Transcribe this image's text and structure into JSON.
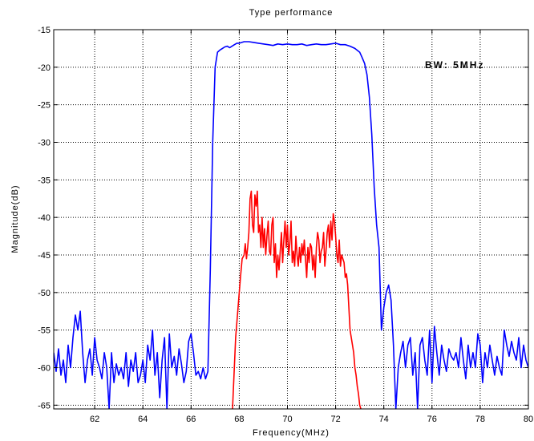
{
  "chart_data": {
    "type": "line",
    "title": "Type performance",
    "xlabel": "Frequency(MHz)",
    "ylabel": "Magnitude(dB)",
    "annotation": "BW: 5MHz",
    "xlim": [
      60.3,
      80
    ],
    "ylim": [
      -65.5,
      -15
    ],
    "xticks": [
      62,
      64,
      66,
      68,
      70,
      72,
      74,
      76,
      78,
      80
    ],
    "yticks": [
      -15,
      -20,
      -25,
      -30,
      -35,
      -40,
      -45,
      -50,
      -55,
      -60,
      -65
    ],
    "grid": true,
    "grid_style": "dotted",
    "series": [
      {
        "color": "#0000ff",
        "x": [
          60.3,
          60.4,
          60.5,
          60.6,
          60.7,
          60.8,
          60.9,
          61.0,
          61.1,
          61.2,
          61.3,
          61.4,
          61.5,
          61.6,
          61.7,
          61.8,
          61.9,
          62.0,
          62.1,
          62.2,
          62.3,
          62.4,
          62.5,
          62.6,
          62.7,
          62.8,
          62.9,
          63.0,
          63.1,
          63.2,
          63.3,
          63.4,
          63.5,
          63.6,
          63.7,
          63.8,
          63.9,
          64.0,
          64.1,
          64.2,
          64.3,
          64.4,
          64.5,
          64.6,
          64.7,
          64.8,
          64.9,
          65.0,
          65.1,
          65.2,
          65.3,
          65.4,
          65.5,
          65.6,
          65.7,
          65.8,
          65.9,
          66.0,
          66.1,
          66.2,
          66.3,
          66.4,
          66.5,
          66.6,
          66.7,
          66.8,
          66.9,
          67.0,
          67.1,
          67.2,
          67.3,
          67.4,
          67.5,
          67.6,
          67.7,
          67.8,
          67.9,
          68.0,
          68.2,
          68.4,
          68.6,
          68.8,
          69.0,
          69.2,
          69.4,
          69.6,
          69.8,
          70.0,
          70.2,
          70.4,
          70.6,
          70.8,
          71.0,
          71.2,
          71.4,
          71.6,
          71.8,
          72.0,
          72.2,
          72.4,
          72.6,
          72.8,
          73.0,
          73.1,
          73.2,
          73.3,
          73.4,
          73.5,
          73.6,
          73.7,
          73.8,
          73.9,
          74.0,
          74.1,
          74.2,
          74.3,
          74.4,
          74.5,
          74.6,
          74.7,
          74.8,
          74.9,
          75.0,
          75.1,
          75.2,
          75.3,
          75.4,
          75.5,
          75.6,
          75.7,
          75.8,
          75.9,
          76.0,
          76.1,
          76.2,
          76.3,
          76.4,
          76.5,
          76.6,
          76.7,
          76.8,
          76.9,
          77.0,
          77.1,
          77.2,
          77.3,
          77.4,
          77.5,
          77.6,
          77.7,
          77.8,
          77.9,
          78.0,
          78.1,
          78.2,
          78.3,
          78.4,
          78.5,
          78.6,
          78.7,
          78.8,
          78.9,
          79.0,
          79.1,
          79.2,
          79.3,
          79.4,
          79.5,
          79.6,
          79.7,
          79.8,
          79.9,
          80.0
        ],
        "y": [
          -58,
          -60.5,
          -57.5,
          -61,
          -59,
          -62,
          -57,
          -60,
          -56,
          -53,
          -55,
          -52.5,
          -58,
          -62,
          -59,
          -57.5,
          -61,
          -56,
          -59,
          -60,
          -61.5,
          -58,
          -60,
          -66,
          -58,
          -62,
          -59.5,
          -61,
          -60,
          -61.5,
          -58,
          -62.5,
          -59,
          -60.5,
          -58,
          -62,
          -61,
          -59,
          -62,
          -57,
          -59,
          -55,
          -61,
          -58,
          -64,
          -59,
          -56,
          -66,
          -55.5,
          -60,
          -58.5,
          -61,
          -57.5,
          -59.5,
          -62,
          -60.5,
          -56.5,
          -55.5,
          -58,
          -61,
          -60.5,
          -61.5,
          -60,
          -61.5,
          -60.5,
          -47,
          -30,
          -20,
          -18,
          -17.7,
          -17.5,
          -17.3,
          -17.2,
          -17.4,
          -17.2,
          -17.0,
          -16.8,
          -16.8,
          -16.6,
          -16.6,
          -16.7,
          -16.8,
          -16.9,
          -17.0,
          -17.1,
          -16.9,
          -17.0,
          -16.9,
          -17.0,
          -17.0,
          -16.9,
          -17.1,
          -17.0,
          -16.9,
          -17.0,
          -17.0,
          -16.9,
          -16.8,
          -17.0,
          -17.0,
          -17.2,
          -17.5,
          -18.0,
          -18.7,
          -19.5,
          -21,
          -24,
          -29,
          -36,
          -41,
          -44,
          -55,
          -52,
          -50,
          -49,
          -51,
          -57,
          -66,
          -60,
          -58,
          -56.5,
          -60,
          -57,
          -56,
          -61,
          -58,
          -66,
          -57,
          -56,
          -59,
          -61,
          -55,
          -62,
          -54.5,
          -58,
          -61,
          -57,
          -59,
          -60.5,
          -57.5,
          -58.5,
          -59,
          -58,
          -60,
          -56,
          -59,
          -61.5,
          -57,
          -60,
          -58,
          -60,
          -55.5,
          -57,
          -62,
          -58,
          -60,
          -57,
          -59,
          -61,
          -58.5,
          -60,
          -61,
          -55,
          -57,
          -58.5,
          -56.5,
          -58,
          -59,
          -56,
          -60,
          -57,
          -59,
          -60
        ]
      },
      {
        "color": "#ff0000",
        "x": [
          67.72,
          67.85,
          67.95,
          68.05,
          68.12,
          68.2,
          68.25,
          68.3,
          68.35,
          68.4,
          68.45,
          68.5,
          68.55,
          68.6,
          68.65,
          68.7,
          68.75,
          68.8,
          68.85,
          68.9,
          68.95,
          69.0,
          69.05,
          69.1,
          69.15,
          69.2,
          69.25,
          69.3,
          69.35,
          69.4,
          69.45,
          69.5,
          69.55,
          69.6,
          69.65,
          69.7,
          69.75,
          69.8,
          69.85,
          69.9,
          69.95,
          70.0,
          70.05,
          70.1,
          70.15,
          70.2,
          70.25,
          70.3,
          70.35,
          70.4,
          70.45,
          70.5,
          70.55,
          70.6,
          70.65,
          70.7,
          70.75,
          70.8,
          70.85,
          70.9,
          70.95,
          71.0,
          71.05,
          71.1,
          71.15,
          71.2,
          71.25,
          71.3,
          71.35,
          71.4,
          71.45,
          71.5,
          71.55,
          71.6,
          71.65,
          71.7,
          71.75,
          71.8,
          71.85,
          71.9,
          71.95,
          72.0,
          72.05,
          72.1,
          72.15,
          72.2,
          72.25,
          72.3,
          72.35,
          72.4,
          72.45,
          72.5,
          72.55,
          72.6,
          72.65,
          72.7,
          72.75,
          72.8,
          72.85,
          72.9,
          72.95,
          73.0,
          73.05
        ],
        "y": [
          -66,
          -56,
          -52,
          -48,
          -45.5,
          -45,
          -43.5,
          -45.5,
          -44,
          -42,
          -37.5,
          -36.5,
          -41,
          -42,
          -37,
          -38.5,
          -36.5,
          -42,
          -41,
          -44,
          -40,
          -44,
          -41.5,
          -45,
          -42.5,
          -40.5,
          -44.5,
          -45,
          -41,
          -40,
          -46,
          -43.5,
          -48,
          -45,
          -47,
          -44.5,
          -42,
          -46,
          -43,
          -40.5,
          -44,
          -41,
          -45,
          -43.5,
          -40.5,
          -46,
          -44.5,
          -46.5,
          -42.5,
          -45,
          -46.5,
          -44,
          -46,
          -43.5,
          -45,
          -43,
          -45.5,
          -48,
          -44,
          -46,
          -43.5,
          -44,
          -47,
          -45,
          -48,
          -44,
          -42,
          -43,
          -46,
          -44.5,
          -44,
          -42,
          -46.5,
          -44.5,
          -42,
          -41,
          -44,
          -40.5,
          -43,
          -39.5,
          -40.5,
          -42.5,
          -45,
          -46,
          -43,
          -46.5,
          -45,
          -45.5,
          -46,
          -48,
          -47.5,
          -49,
          -52,
          -55,
          -56,
          -57,
          -58,
          -60,
          -61,
          -62.5,
          -63.5,
          -65,
          -66
        ]
      }
    ]
  }
}
